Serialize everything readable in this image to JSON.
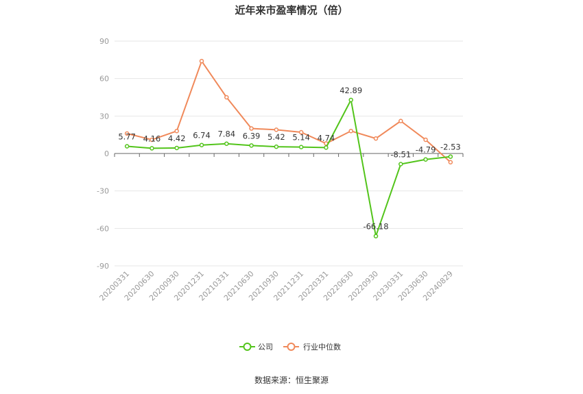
{
  "title": "近年来市盈率情况（倍）",
  "source": "数据来源：恒生聚源",
  "chart_data": {
    "type": "line",
    "title": "近年来市盈率情况（倍）",
    "categories": [
      "20200331",
      "20200630",
      "20200930",
      "20201231",
      "20210331",
      "20210630",
      "20210930",
      "20211231",
      "20220331",
      "20220630",
      "20220930",
      "20230331",
      "20230630",
      "20240829"
    ],
    "ylim": [
      -90,
      90
    ],
    "yticks": [
      90,
      60,
      30,
      0,
      -30,
      -60,
      -90
    ],
    "grid": true,
    "legend_position": "bottom",
    "series": [
      {
        "name": "公司",
        "color": "#52c41a",
        "values": [
          5.77,
          4.16,
          4.42,
          6.74,
          7.84,
          6.39,
          5.42,
          5.14,
          4.74,
          42.89,
          -66.18,
          -8.51,
          -4.79,
          -2.53
        ],
        "labels": [
          "5.77",
          "4.16",
          "4.42",
          "6.74",
          "7.84",
          "6.39",
          "5.42",
          "5.14",
          "4.74",
          "42.89",
          "-66.18",
          "-8.51",
          "-4.79",
          "-2.53"
        ]
      },
      {
        "name": "行业中位数",
        "color": "#f0895a",
        "values": [
          16,
          11,
          18,
          74,
          45,
          20,
          19,
          17,
          8,
          18,
          12,
          26,
          11,
          -7
        ]
      }
    ]
  }
}
